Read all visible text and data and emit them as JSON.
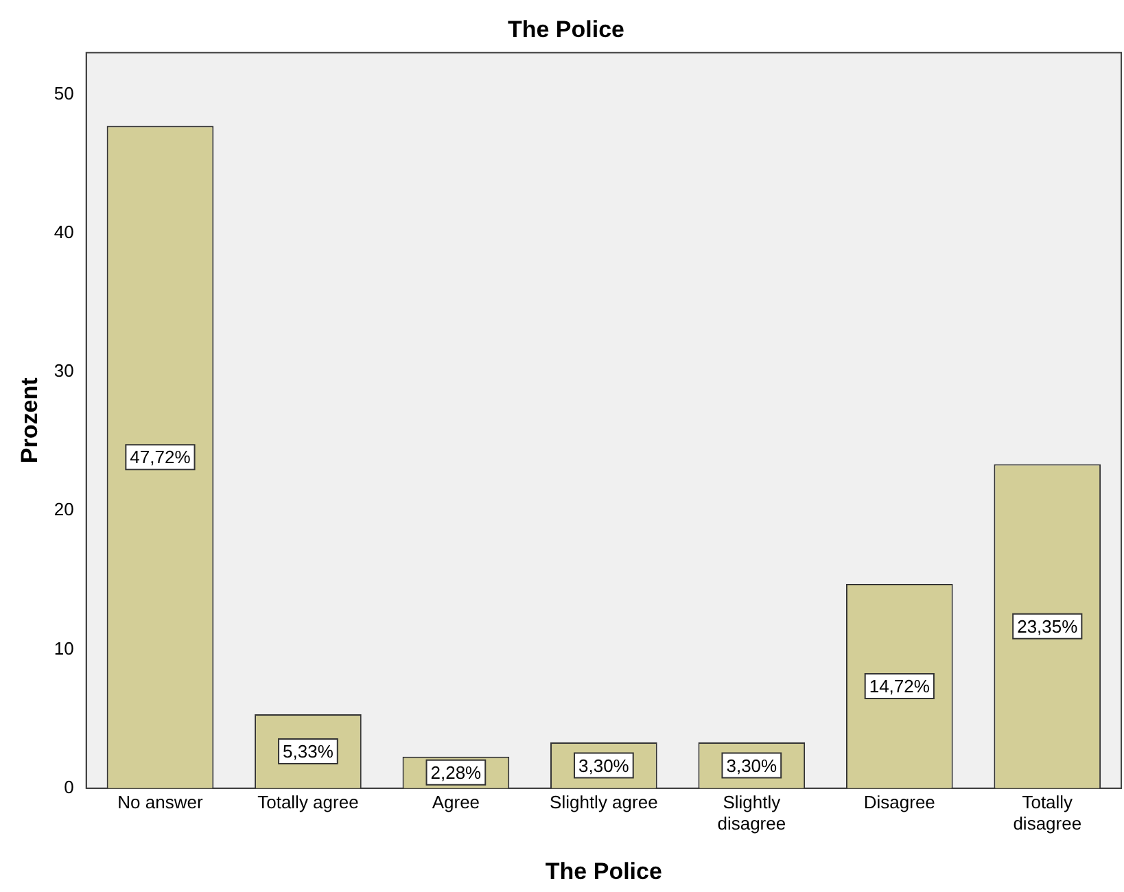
{
  "chart_data": {
    "type": "bar",
    "title": "The Police",
    "xlabel": "The Police",
    "ylabel": "Prozent",
    "categories": [
      "No answer",
      "Totally agree",
      "Agree",
      "Slightly agree",
      "Slightly disagree",
      "Disagree",
      "Totally disagree"
    ],
    "values": [
      47.72,
      5.33,
      2.28,
      3.3,
      3.3,
      14.72,
      23.35
    ],
    "value_labels": [
      "47,72%",
      "5,33%",
      "2,28%",
      "3,30%",
      "3,30%",
      "14,72%",
      "23,35%"
    ],
    "color": "#d3ce97",
    "ylim": [
      0,
      53
    ],
    "yticks": [
      0,
      10,
      20,
      30,
      40,
      50
    ],
    "grid": false,
    "legend": false
  }
}
